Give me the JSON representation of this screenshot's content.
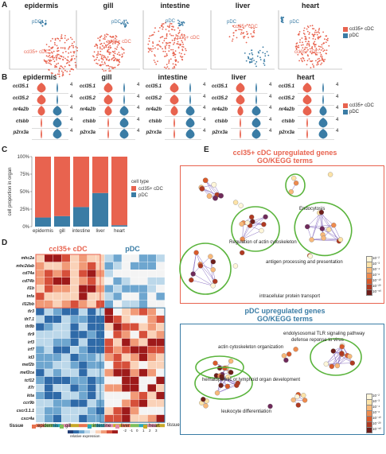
{
  "panels": {
    "a": "A",
    "b": "B",
    "c": "C",
    "d": "D",
    "e": "E"
  },
  "colors": {
    "cdc": "#e8634f",
    "pdc": "#3a7ca5",
    "green": "#5ab43c",
    "red_border": "#e8634f",
    "blue_border": "#3a7ca5"
  },
  "organs": [
    "epidermis",
    "gill",
    "intestine",
    "liver",
    "heart"
  ],
  "umap_labels": {
    "pdc": "pDC",
    "cdc": "ccl35+ cDC"
  },
  "legend_ab": {
    "cdc": "ccl35+ cDC",
    "pdc": "pDC"
  },
  "violin_genes": [
    "ccl35.1",
    "ccl35.2",
    "nr4a2b",
    "ctsbb",
    "p2rx3a"
  ],
  "violin_scale": [
    "4",
    "4",
    "4",
    "4",
    "4"
  ],
  "chart_c": {
    "type": "bar",
    "ylabel": "cell proportion in organ",
    "yticks": [
      "0%",
      "25%",
      "50%",
      "75%",
      "100%"
    ],
    "categories": [
      "epidermis",
      "gill",
      "intestine",
      "liver",
      "heart"
    ],
    "series": [
      {
        "name": "ccl35+ cDC",
        "values": [
          87,
          85,
          72,
          52,
          98
        ]
      },
      {
        "name": "pDC",
        "values": [
          13,
          15,
          28,
          48,
          2
        ]
      }
    ],
    "legend_title": "cell type"
  },
  "heatmap": {
    "col_titles": {
      "cdc": "ccl35+ cDC",
      "pdc": "pDC"
    },
    "genes": [
      "mhc2a",
      "mhc2dab",
      "cd74a",
      "cd74b",
      "il1b",
      "tnfa",
      "il12bb",
      "tlr3",
      "tlr7.1",
      "tlr8b",
      "tlr9",
      "irf3",
      "irf7",
      "id3",
      "mef2b",
      "mef2ca",
      "tcf12",
      "il7r",
      "kita",
      "ccr9b",
      "cxcr3.1.1",
      "cxcr4a"
    ],
    "scale_title": "relative expression",
    "scale_ticks": [
      "-2",
      "-1",
      "0",
      "1",
      "2",
      "3"
    ],
    "tissue_label": "tissue",
    "tissue_legend_title": "tissue",
    "tissue_legend": [
      {
        "name": "epidermis",
        "color": "#e8734f"
      },
      {
        "name": "gill",
        "color": "#7fbf5a"
      },
      {
        "name": "intestine",
        "color": "#2aa7b8"
      },
      {
        "name": "liver",
        "color": "#e28aa8"
      },
      {
        "name": "heart",
        "color": "#c7a829"
      }
    ]
  },
  "network_cdc": {
    "title1": "ccl35+ cDC upregulated genes",
    "title2": "GO/KEGG terms",
    "terms": [
      "Endocytosis",
      "Regulation of actin cytoskeleton",
      "antigen processing and presentation",
      "intracellular protein transport"
    ]
  },
  "network_pdc": {
    "title1": "pDC upregulated genes",
    "title2": "GO/KEGG terms",
    "terms": [
      "endolysosomal TLR signaling pathway",
      "defense reponse to virus",
      "actin cytoskeleton organization",
      "hematopoietic or lymphoid organ development",
      "leukocyte differentiation"
    ]
  },
  "pvalue_legend": [
    "10⁻²",
    "10⁻³",
    "10⁻⁴",
    "10⁻⁶",
    "10⁻¹⁰",
    "10⁻²⁰",
    "10⁻⁵⁰"
  ]
}
